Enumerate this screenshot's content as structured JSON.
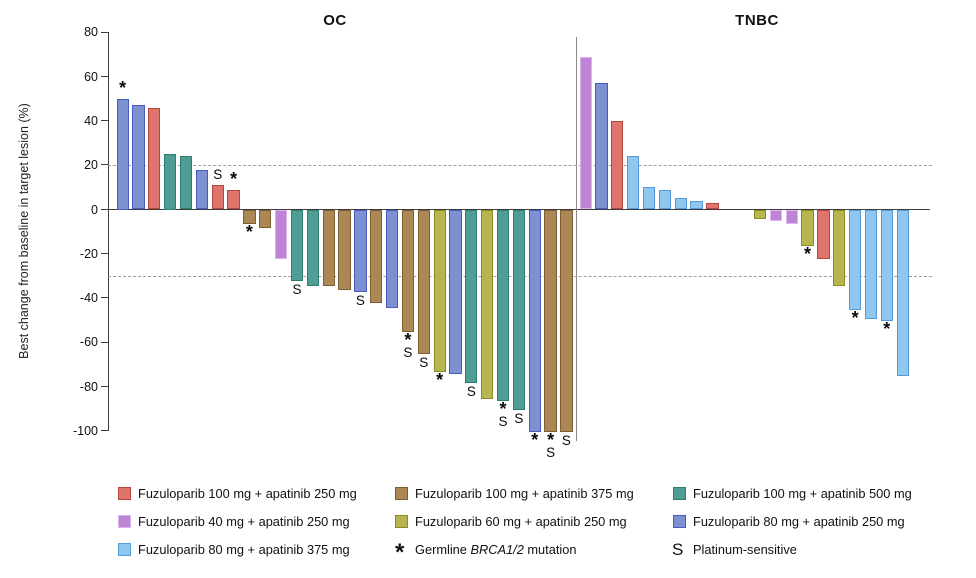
{
  "chart_data": {
    "type": "bar",
    "subtype": "waterfall",
    "ylabel": "Best change from baseline in target lesion (%)",
    "yticks": [
      80,
      60,
      40,
      20,
      0,
      -20,
      -40,
      -60,
      -80,
      -100
    ],
    "ylim": [
      -100,
      80
    ],
    "reference_lines": [
      20,
      -30
    ],
    "grid": "dashed horizontal at +20 and -30 only",
    "legend_position": "bottom",
    "groups": {
      "red250": {
        "label": "Fuzuloparib 100 mg + apatinib 250 mg",
        "fill": "#DE746C",
        "stroke": "#B8463C"
      },
      "brown375": {
        "label": "Fuzuloparib 100 mg + apatinib 375 mg",
        "fill": "#AB8756",
        "stroke": "#7E5E35"
      },
      "teal500": {
        "label": "Fuzuloparib 100 mg + apatinib 500 mg",
        "fill": "#4F9D94",
        "stroke": "#2E7D73"
      },
      "orchid40": {
        "label": "Fuzuloparib 40 mg + apatinib 250 mg",
        "fill": "#BE85D7",
        "stroke": "#DDB3EE"
      },
      "olive60": {
        "label": "Fuzuloparib 60 mg + apatinib 250 mg",
        "fill": "#B6B54E",
        "stroke": "#8B8B24"
      },
      "blue250": {
        "label": "Fuzuloparib 80 mg + apatinib 250 mg",
        "fill": "#7C90D2",
        "stroke": "#4A5CBE"
      },
      "lblue375": {
        "label": "Fuzuloparib 80 mg + apatinib 375 mg",
        "fill": "#90C7EF",
        "stroke": "#549BD8"
      }
    },
    "marker_meanings": {
      "*": "Germline BRCA1/2 mutation",
      "S": "Platinum-sensitive"
    },
    "sections": [
      {
        "title": "OC",
        "bars": [
          {
            "value": 50,
            "group": "blue250",
            "markers": "*"
          },
          {
            "value": 47,
            "group": "blue250",
            "markers": ""
          },
          {
            "value": 46,
            "group": "red250",
            "markers": ""
          },
          {
            "value": 25,
            "group": "teal500",
            "markers": ""
          },
          {
            "value": 24,
            "group": "teal500",
            "markers": ""
          },
          {
            "value": 18,
            "group": "blue250",
            "markers": ""
          },
          {
            "value": 11,
            "group": "red250",
            "markers": "S"
          },
          {
            "value": 9,
            "group": "red250",
            "markers": "*"
          },
          {
            "value": -6,
            "group": "brown375",
            "markers": "*"
          },
          {
            "value": -8,
            "group": "brown375",
            "markers": ""
          },
          {
            "value": -22,
            "group": "orchid40",
            "markers": ""
          },
          {
            "value": -32,
            "group": "teal500",
            "markers": "S"
          },
          {
            "value": -34,
            "group": "teal500",
            "markers": ""
          },
          {
            "value": -34,
            "group": "brown375",
            "markers": ""
          },
          {
            "value": -36,
            "group": "brown375",
            "markers": ""
          },
          {
            "value": -37,
            "group": "blue250",
            "markers": "S"
          },
          {
            "value": -42,
            "group": "brown375",
            "markers": ""
          },
          {
            "value": -44,
            "group": "blue250",
            "markers": ""
          },
          {
            "value": -55,
            "group": "brown375",
            "markers": "*S"
          },
          {
            "value": -65,
            "group": "brown375",
            "markers": "S"
          },
          {
            "value": -73,
            "group": "olive60",
            "markers": "*"
          },
          {
            "value": -74,
            "group": "blue250",
            "markers": ""
          },
          {
            "value": -78,
            "group": "teal500",
            "markers": "S"
          },
          {
            "value": -85,
            "group": "olive60",
            "markers": ""
          },
          {
            "value": -86,
            "group": "teal500",
            "markers": "*S"
          },
          {
            "value": -90,
            "group": "teal500",
            "markers": "S"
          },
          {
            "value": -100,
            "group": "blue250",
            "markers": "*"
          },
          {
            "value": -100,
            "group": "brown375",
            "markers": "*S"
          },
          {
            "value": -100,
            "group": "brown375",
            "markers": "S"
          }
        ]
      },
      {
        "title": "TNBC",
        "bars": [
          {
            "value": 69,
            "group": "orchid40",
            "markers": ""
          },
          {
            "value": 57,
            "group": "blue250",
            "markers": ""
          },
          {
            "value": 40,
            "group": "red250",
            "markers": ""
          },
          {
            "value": 24,
            "group": "lblue375",
            "markers": ""
          },
          {
            "value": 10,
            "group": "lblue375",
            "markers": ""
          },
          {
            "value": 9,
            "group": "lblue375",
            "markers": ""
          },
          {
            "value": 5,
            "group": "lblue375",
            "markers": ""
          },
          {
            "value": 4,
            "group": "lblue375",
            "markers": ""
          },
          {
            "value": 3,
            "group": "red250",
            "markers": ""
          },
          {
            "value": 0,
            "group": null,
            "markers": ""
          },
          {
            "value": 0,
            "group": null,
            "markers": ""
          },
          {
            "value": -4,
            "group": "olive60",
            "markers": ""
          },
          {
            "value": -5,
            "group": "orchid40",
            "markers": ""
          },
          {
            "value": -6,
            "group": "orchid40",
            "markers": ""
          },
          {
            "value": -16,
            "group": "olive60",
            "markers": "*"
          },
          {
            "value": -22,
            "group": "red250",
            "markers": ""
          },
          {
            "value": -34,
            "group": "olive60",
            "markers": ""
          },
          {
            "value": -45,
            "group": "lblue375",
            "markers": "*"
          },
          {
            "value": -49,
            "group": "lblue375",
            "markers": ""
          },
          {
            "value": -50,
            "group": "lblue375",
            "markers": "*"
          },
          {
            "value": -75,
            "group": "lblue375",
            "markers": ""
          }
        ]
      }
    ],
    "legend": {
      "items": [
        {
          "type": "group",
          "group": "red250",
          "col": 0,
          "row": 0
        },
        {
          "type": "group",
          "group": "brown375",
          "col": 1,
          "row": 0
        },
        {
          "type": "group",
          "group": "teal500",
          "col": 2,
          "row": 0
        },
        {
          "type": "group",
          "group": "orchid40",
          "col": 0,
          "row": 1
        },
        {
          "type": "group",
          "group": "olive60",
          "col": 1,
          "row": 1
        },
        {
          "type": "group",
          "group": "blue250",
          "col": 2,
          "row": 1
        },
        {
          "type": "group",
          "group": "lblue375",
          "col": 0,
          "row": 2
        },
        {
          "type": "symbol",
          "symbol": "*",
          "prefix": "Germline ",
          "italic": "BRCA1/2",
          "suffix": " mutation",
          "col": 1,
          "row": 2
        },
        {
          "type": "symbol",
          "symbol": "S",
          "label": "Platinum-sensitive",
          "col": 2,
          "row": 2
        }
      ]
    }
  }
}
